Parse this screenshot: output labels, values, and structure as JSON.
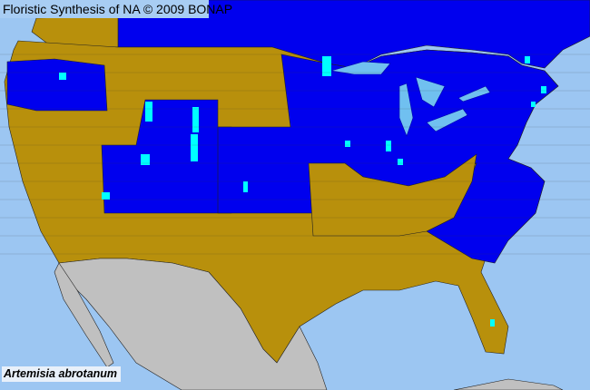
{
  "header": {
    "title": "Floristic Synthesis of NA © 2009 BONAP"
  },
  "map": {
    "species_label": "Artemisia abrotanum",
    "colors": {
      "ocean": "#9cc6f2",
      "present_native": "#0000ee",
      "absent": "#b8900c",
      "rare": "#00ffff",
      "outside_region": "#c0c0c0",
      "lakes": "#70c0f0",
      "county_lines": "#333333"
    }
  }
}
